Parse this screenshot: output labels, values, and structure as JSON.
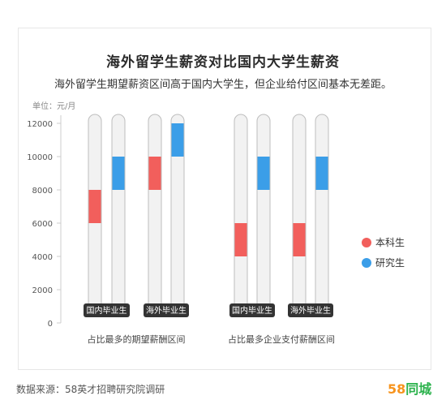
{
  "header": {
    "title": "海外留学生薪资对比国内大学生薪资",
    "subtitle": "海外留学生期望薪资区间高于国内大学生，但企业给付区间基本无差距。"
  },
  "footer": {
    "source": "数据来源：58英才招聘研究院调研",
    "logo_number": "58",
    "logo_text": "同城"
  },
  "chart_data": {
    "type": "bar",
    "subtype": "floating-range",
    "unit_label": "单位：元/月",
    "ylim": [
      0,
      12000
    ],
    "yticks": [
      0,
      2000,
      4000,
      6000,
      8000,
      10000,
      12000
    ],
    "colors": {
      "本科生": "#f25f5c",
      "研究生": "#3b9ee8",
      "track": "#f2f2f2",
      "track_border": "#bdbdbd",
      "badge": "#333333"
    },
    "legend": {
      "position": "right",
      "entries": [
        "本科生",
        "研究生"
      ]
    },
    "groups": [
      {
        "label": "占比最多的期望薪酬区间",
        "subgroups": [
          {
            "label": "国内毕业生",
            "series": [
              {
                "name": "本科生",
                "range": [
                  6000,
                  8000
                ]
              },
              {
                "name": "研究生",
                "range": [
                  8000,
                  10000
                ]
              }
            ]
          },
          {
            "label": "海外毕业生",
            "series": [
              {
                "name": "本科生",
                "range": [
                  8000,
                  10000
                ]
              },
              {
                "name": "研究生",
                "range": [
                  10000,
                  12000
                ]
              }
            ]
          }
        ]
      },
      {
        "label": "占比最多企业支付薪酬区间",
        "subgroups": [
          {
            "label": "国内毕业生",
            "series": [
              {
                "name": "本科生",
                "range": [
                  4000,
                  6000
                ]
              },
              {
                "name": "研究生",
                "range": [
                  8000,
                  10000
                ]
              }
            ]
          },
          {
            "label": "海外毕业生",
            "series": [
              {
                "name": "本科生",
                "range": [
                  4000,
                  6000
                ]
              },
              {
                "name": "研究生",
                "range": [
                  8000,
                  10000
                ]
              }
            ]
          }
        ]
      }
    ]
  }
}
